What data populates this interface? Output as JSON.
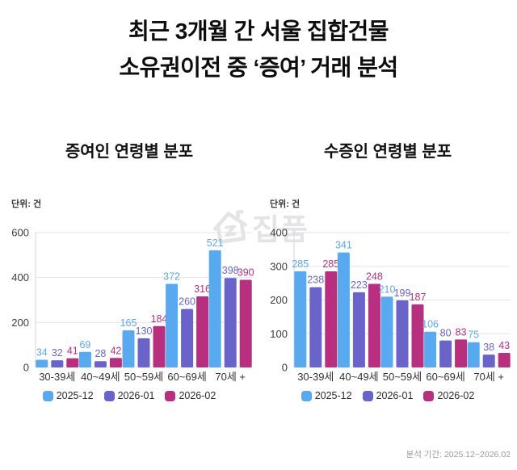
{
  "title": {
    "line1": "최근 3개월 간 서울 집합건물",
    "line2": "소유권이전 중 ‘증여’ 거래 분석"
  },
  "watermark": {
    "brand": "집품",
    "icon": "house-icon"
  },
  "footer": {
    "analysis_period": "분석 기간: 2025.12~2026.02"
  },
  "colors": {
    "series": [
      "#58a9f0",
      "#6a64ca",
      "#b72f7e"
    ],
    "grid": "#e3e3e9",
    "axis": "#d6d6de",
    "tick_text": "#3c3c3c",
    "category_text": "#333333",
    "title_text": "#0d0d0d",
    "footer_text": "#9b9b9b",
    "watermark": "#e4e4e7"
  },
  "chart_data": [
    {
      "type": "bar",
      "title": "증여인 연령별 분포",
      "unit_label": "단위: 건",
      "categories": [
        "30-39세",
        "40~49세",
        "50~59세",
        "60~69세",
        "70세 +"
      ],
      "series": [
        {
          "name": "2025-12",
          "color": "#58a9f0",
          "values": [
            34,
            69,
            165,
            372,
            521
          ]
        },
        {
          "name": "2026-01",
          "color": "#6a64ca",
          "values": [
            32,
            28,
            130,
            260,
            398
          ]
        },
        {
          "name": "2026-02",
          "color": "#b72f7e",
          "values": [
            41,
            42,
            184,
            316,
            390
          ]
        }
      ],
      "ylim": [
        0,
        600
      ],
      "yticks": [
        0,
        200,
        400,
        600
      ],
      "grid": true,
      "value_labels": true,
      "legend_position": "bottom"
    },
    {
      "type": "bar",
      "title": "수증인 연령별 분포",
      "unit_label": "단위: 건",
      "categories": [
        "30-39세",
        "40~49세",
        "50~59세",
        "60~69세",
        "70세 +"
      ],
      "series": [
        {
          "name": "2025-12",
          "color": "#58a9f0",
          "values": [
            285,
            341,
            210,
            106,
            75
          ]
        },
        {
          "name": "2026-01",
          "color": "#6a64ca",
          "values": [
            238,
            223,
            199,
            80,
            38
          ]
        },
        {
          "name": "2026-02",
          "color": "#b72f7e",
          "values": [
            285,
            248,
            187,
            83,
            43
          ]
        }
      ],
      "ylim": [
        0,
        400
      ],
      "yticks": [
        0,
        100,
        200,
        300,
        400
      ],
      "grid": true,
      "value_labels": true,
      "legend_position": "bottom"
    }
  ]
}
